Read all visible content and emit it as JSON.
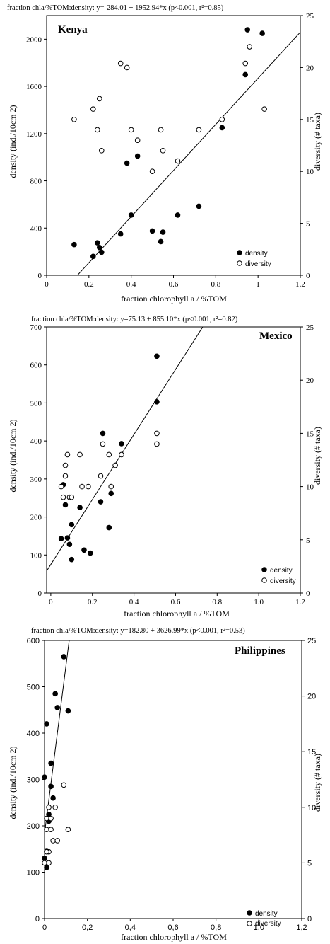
{
  "chart_data": [
    {
      "type": "scatter",
      "title": "fraction chla/%TOM:density:  y=-284.01 + 1952.94*x (p<0.001, r²=0.85)",
      "region": "Kenya",
      "xlabel": "fraction chlorophyll a / %TOM",
      "ylabel": "density (ind./10cm 2)",
      "y2label": "diversity (# taxa)",
      "xlim": [
        0,
        1.2
      ],
      "ylim": [
        0,
        2200
      ],
      "y2lim": [
        0,
        25
      ],
      "x_ticks": [
        "0",
        "0.2",
        "0.4",
        "0.6",
        "0.8",
        "1",
        "1.2"
      ],
      "y_ticks": [
        "0",
        "400",
        "800",
        "1200",
        "1600",
        "2000"
      ],
      "y2_ticks": [
        "0",
        "5",
        "10",
        "15",
        "20",
        "25"
      ],
      "legend": {
        "position": "bottom-right",
        "entries": [
          "density",
          "diversity"
        ]
      },
      "regression": {
        "intercept": -284.01,
        "slope": 1952.94,
        "x_range": [
          0.145,
          1.2
        ]
      },
      "series": [
        {
          "name": "density",
          "marker": "filled",
          "axis": "left",
          "x": [
            0.13,
            0.22,
            0.24,
            0.25,
            0.26,
            0.35,
            0.38,
            0.4,
            0.43,
            0.5,
            0.54,
            0.55,
            0.62,
            0.72,
            0.83,
            0.94,
            0.95,
            1.02
          ],
          "y": [
            260,
            160,
            275,
            235,
            195,
            350,
            950,
            510,
            1010,
            375,
            285,
            365,
            510,
            585,
            1250,
            1700,
            2080,
            2050
          ]
        },
        {
          "name": "diversity",
          "marker": "open",
          "axis": "right",
          "x": [
            0.13,
            0.22,
            0.24,
            0.25,
            0.26,
            0.35,
            0.38,
            0.4,
            0.43,
            0.5,
            0.54,
            0.55,
            0.62,
            0.72,
            0.83,
            0.94,
            0.96,
            1.03
          ],
          "y": [
            15.0,
            16.0,
            14.0,
            17.0,
            12.0,
            20.4,
            20.0,
            14.0,
            13.0,
            10.0,
            14.0,
            12.0,
            11.0,
            14.0,
            15.0,
            20.4,
            22.0,
            16.0
          ]
        }
      ]
    },
    {
      "type": "scatter",
      "title": "fraction chla/%TOM:density:  y=75.13 + 855.10*x (p<0.001, r²=0.82)",
      "region": "Mexico",
      "xlabel": "fraction chlorophyll a / %TOM",
      "ylabel": "density (ind./10cm 2)",
      "y2label": "diversity (# taxa)",
      "xlim": [
        -0.02,
        1.2
      ],
      "ylim": [
        0,
        700
      ],
      "y2lim": [
        0,
        25
      ],
      "x_ticks": [
        "0",
        "0.2",
        "0.4",
        "0.6",
        "0.8",
        "1.0",
        "1.2"
      ],
      "y_ticks": [
        "0",
        "100",
        "200",
        "300",
        "400",
        "500",
        "600",
        "700"
      ],
      "y2_ticks": [
        "0",
        "5",
        "10",
        "15",
        "20",
        "25"
      ],
      "legend": {
        "position": "bottom-right",
        "entries": [
          "density",
          "diversity"
        ]
      },
      "regression": {
        "intercept": 75.13,
        "slope": 855.1,
        "x_range": [
          -0.02,
          0.73
        ]
      },
      "series": [
        {
          "name": "density",
          "marker": "filled",
          "axis": "left",
          "x": [
            0.05,
            0.06,
            0.07,
            0.08,
            0.09,
            0.1,
            0.1,
            0.14,
            0.16,
            0.19,
            0.24,
            0.25,
            0.28,
            0.29,
            0.34,
            0.51,
            0.51
          ],
          "y": [
            143,
            285,
            232,
            145,
            128,
            180,
            88,
            225,
            113,
            105,
            240,
            420,
            172,
            262,
            393,
            503,
            623
          ]
        },
        {
          "name": "diversity",
          "marker": "open",
          "axis": "right",
          "x": [
            0.05,
            0.06,
            0.07,
            0.07,
            0.08,
            0.09,
            0.1,
            0.14,
            0.15,
            0.18,
            0.24,
            0.25,
            0.28,
            0.29,
            0.31,
            0.34,
            0.51,
            0.51
          ],
          "y": [
            10.0,
            9.0,
            12.0,
            11.0,
            13.0,
            9.0,
            9.0,
            13.0,
            10.0,
            10.0,
            11.0,
            14.0,
            13.0,
            10.0,
            12.0,
            13.0,
            14.0,
            15.0
          ]
        }
      ]
    },
    {
      "type": "scatter",
      "title": "fraction chla/%TOM:density:  y=182.80 + 3626.99*x (p<0.001, r²=0.53)",
      "region": "Philippines",
      "xlabel": "fraction chlorophyll a / %TOM",
      "ylabel": "density (ind./10cm 2)",
      "y2label": "diversity (# taxa)",
      "xlim": [
        0,
        1.2
      ],
      "ylim": [
        0,
        600
      ],
      "y2lim": [
        0,
        25
      ],
      "x_ticks": [
        "0",
        "0,2",
        "0,4",
        "0,6",
        "0,8",
        "1,0",
        "1,2"
      ],
      "y_ticks": [
        "0",
        "100",
        "200",
        "300",
        "400",
        "500",
        "600"
      ],
      "y2_ticks": [
        "0",
        "5",
        "10",
        "15",
        "20",
        "25"
      ],
      "legend": {
        "position": "bottom-right",
        "entries": [
          "density",
          "diversity"
        ]
      },
      "regression": {
        "intercept": 182.8,
        "slope": 3626.99,
        "x_range": [
          0,
          0.115
        ]
      },
      "series": [
        {
          "name": "density",
          "marker": "filled",
          "axis": "left",
          "x": [
            0.0,
            0.01,
            0.01,
            0.02,
            0.02,
            0.03,
            0.03,
            0.04,
            0.05,
            0.06,
            0.09,
            0.11,
            0.0,
            0.01,
            0.02
          ],
          "y": [
            305,
            420,
            110,
            225,
            215,
            285,
            335,
            260,
            485,
            455,
            565,
            448,
            130,
            145,
            210
          ]
        },
        {
          "name": "diversity",
          "marker": "open",
          "axis": "right",
          "x": [
            0.0,
            0.01,
            0.01,
            0.02,
            0.02,
            0.03,
            0.03,
            0.04,
            0.05,
            0.06,
            0.09,
            0.11,
            0.02,
            0.01
          ],
          "y": [
            5.0,
            8.0,
            9.0,
            10.0,
            6.0,
            8.0,
            9.0,
            7.0,
            10.0,
            7.0,
            12.0,
            8.0,
            5.0,
            6.0
          ]
        }
      ]
    }
  ]
}
